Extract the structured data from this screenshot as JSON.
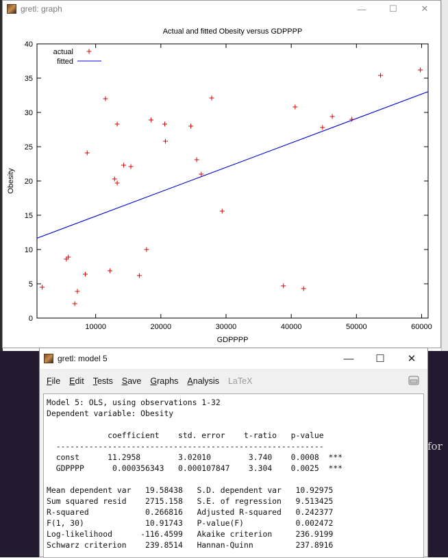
{
  "graph_window": {
    "title": "gretl: graph",
    "controls": {
      "minimize": "—",
      "maximize": "☐",
      "close": "✕"
    }
  },
  "chart_data": {
    "type": "scatter",
    "title": "Actual and fitted Obesity versus GDPPPP",
    "xlabel": "GDPPPP",
    "ylabel": "Obesity",
    "xlim": [
      1000,
      61000
    ],
    "ylim": [
      0,
      40
    ],
    "xticks": [
      10000,
      20000,
      30000,
      40000,
      50000,
      60000
    ],
    "yticks": [
      0,
      5,
      10,
      15,
      20,
      25,
      30,
      35,
      40
    ],
    "legend_position": "top-left",
    "series": [
      {
        "name": "actual",
        "marker": "+",
        "color": "#dd0000",
        "points": [
          [
            1800,
            4.5
          ],
          [
            5500,
            8.6
          ],
          [
            5800,
            8.9
          ],
          [
            6800,
            2.1
          ],
          [
            7200,
            3.9
          ],
          [
            8400,
            6.4
          ],
          [
            8700,
            24.1
          ],
          [
            11500,
            32
          ],
          [
            12200,
            6.9
          ],
          [
            12900,
            20.3
          ],
          [
            13300,
            28.3
          ],
          [
            13300,
            19.7
          ],
          [
            14300,
            22.3
          ],
          [
            15400,
            22.1
          ],
          [
            16700,
            6.2
          ],
          [
            17800,
            10
          ],
          [
            18500,
            28.9
          ],
          [
            20600,
            28.3
          ],
          [
            20700,
            25.8
          ],
          [
            24600,
            28
          ],
          [
            25500,
            23.1
          ],
          [
            26200,
            21
          ],
          [
            27800,
            32.1
          ],
          [
            29400,
            15.6
          ],
          [
            38800,
            4.7
          ],
          [
            40600,
            30.8
          ],
          [
            41900,
            4.3
          ],
          [
            44800,
            27.8
          ],
          [
            46300,
            29.4
          ],
          [
            49300,
            29
          ],
          [
            53700,
            35.4
          ],
          [
            59800,
            36.2
          ]
        ]
      },
      {
        "name": "fitted",
        "type": "line",
        "color": "#0000dd",
        "intercept": 11.2958,
        "slope": 0.000356343
      }
    ]
  },
  "model_window": {
    "title": "gretl: model 5",
    "controls": {
      "minimize": "—",
      "maximize": "☐",
      "close": "✕"
    },
    "menu": [
      {
        "key": "File",
        "label": "File",
        "disabled": false
      },
      {
        "key": "Edit",
        "label": "Edit",
        "disabled": false
      },
      {
        "key": "Tests",
        "label": "Tests",
        "disabled": false
      },
      {
        "key": "Save",
        "label": "Save",
        "disabled": false
      },
      {
        "key": "Graphs",
        "label": "Graphs",
        "disabled": false
      },
      {
        "key": "Analysis",
        "label": "Analysis",
        "disabled": false
      },
      {
        "key": "LaTeX",
        "label": "LaTeX",
        "disabled": true
      }
    ],
    "output_lines": [
      "Model 5: OLS, using observations 1-32",
      "Dependent variable: Obesity",
      "",
      "             coefficient    std. error    t-ratio   p-value",
      "  ---------------------------------------------------------",
      "  const      11.2958        3.02010        3.740    0.0008  ***",
      "  GDPPPP      0.000356343   0.000107847    3.304    0.0025  ***",
      "",
      "Mean dependent var   19.58438   S.D. dependent var   10.92975",
      "Sum squared resid    2715.158   S.E. of regression   9.513425",
      "R-squared            0.266816   Adjusted R-squared   0.242377",
      "F(1, 30)             10.91743   P-value(F)           0.002472",
      "Log-likelihood      -116.4599   Akaike criterion     236.9199",
      "Schwarz criterion    239.8514   Hannan-Quinn         237.8916"
    ]
  },
  "background": {
    "right_text": "for"
  }
}
